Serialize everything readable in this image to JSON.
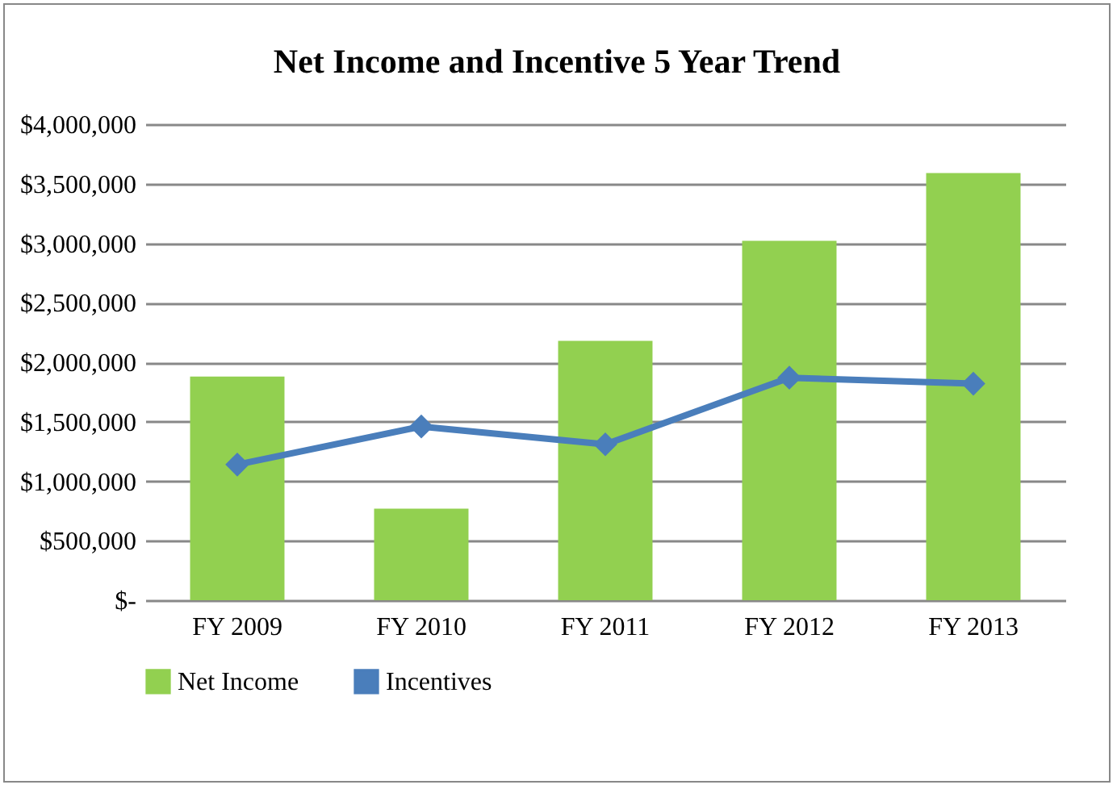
{
  "chart_data": {
    "type": "bar",
    "title": "Net Income and Incentive 5 Year Trend",
    "categories": [
      "FY 2009",
      "FY 2010",
      "FY 2011",
      "FY 2012",
      "FY 2013"
    ],
    "series": [
      {
        "name": "Net Income",
        "color": "#92d050",
        "values": [
          1880000,
          770000,
          2180000,
          3020000,
          3590000
        ]
      },
      {
        "name": "Incentives",
        "type": "line",
        "color": "#4a7ebb",
        "values": [
          1140000,
          1460000,
          1310000,
          1870000,
          1820000
        ]
      }
    ],
    "ylim": [
      0,
      4000000
    ],
    "yticks": [
      {
        "value": 0,
        "label": "$-"
      },
      {
        "value": 500000,
        "label": "$500,000"
      },
      {
        "value": 1000000,
        "label": "$1,000,000"
      },
      {
        "value": 1500000,
        "label": "$1,500,000"
      },
      {
        "value": 2000000,
        "label": "$2,000,000"
      },
      {
        "value": 2500000,
        "label": "$2,500,000"
      },
      {
        "value": 3000000,
        "label": "$3,000,000"
      },
      {
        "value": 3500000,
        "label": "$3,500,000"
      },
      {
        "value": 4000000,
        "label": "$4,000,000"
      }
    ],
    "grid": "y",
    "legend": "bottom",
    "marker": "diamond",
    "line_style": "solid"
  }
}
